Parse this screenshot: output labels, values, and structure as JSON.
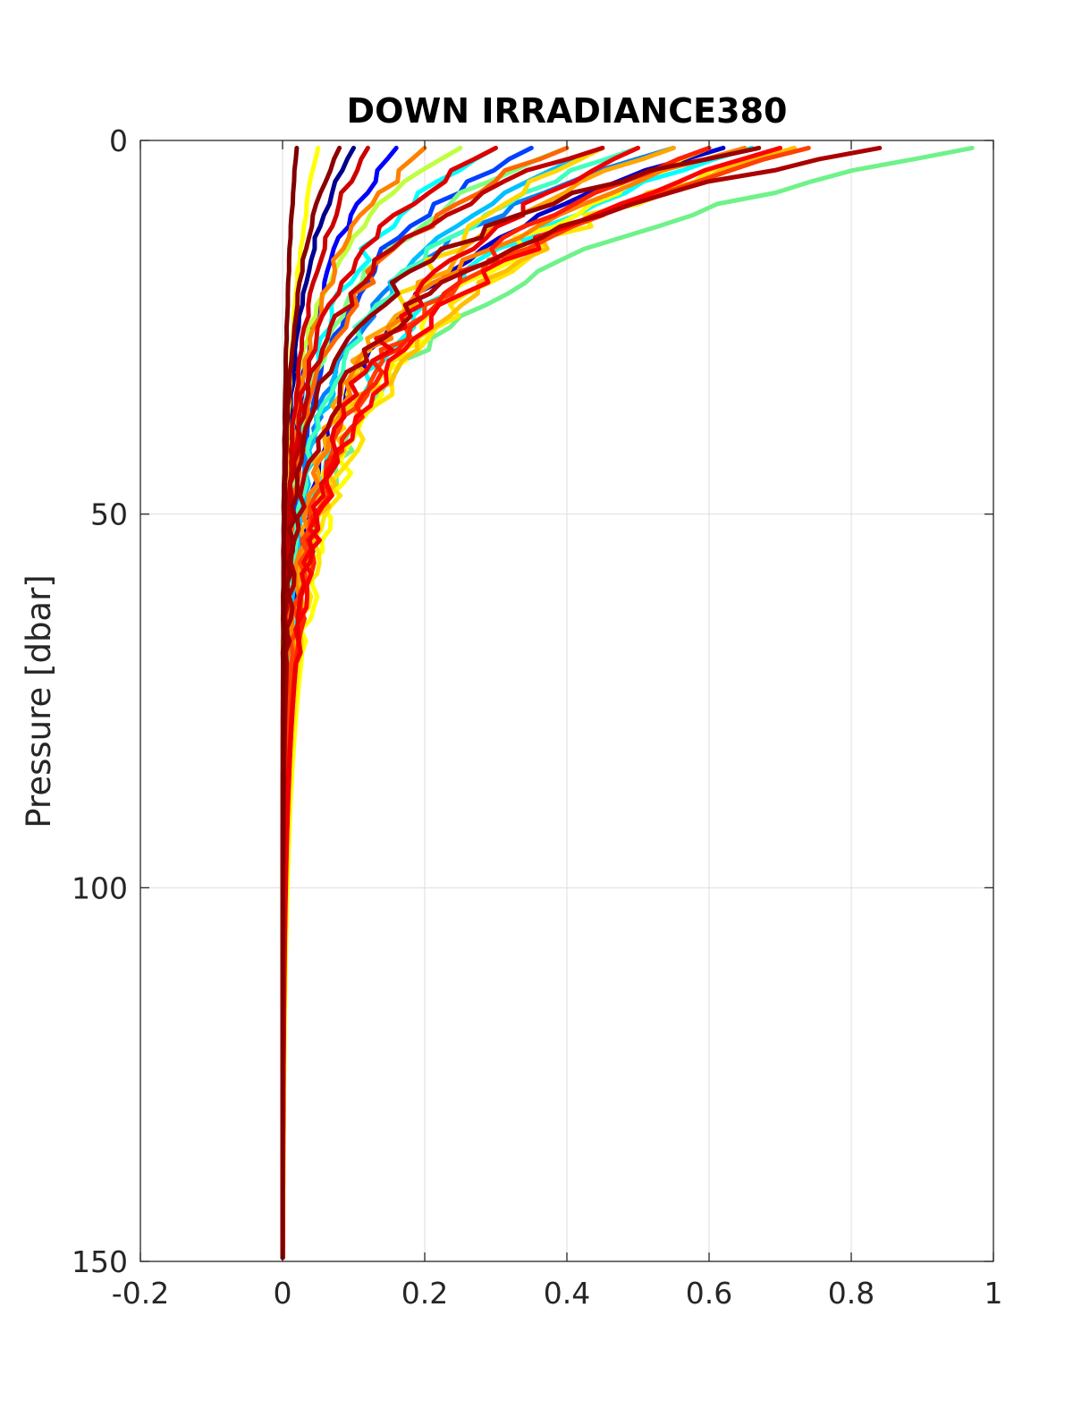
{
  "chart_data": {
    "type": "line",
    "title": "DOWN IRRADIANCE380",
    "xlabel": "",
    "ylabel": "Pressure [dbar]",
    "xlim": [
      -0.2,
      1
    ],
    "ylim": [
      0,
      150
    ],
    "y_reversed": true,
    "grid": true,
    "legend": "none",
    "xticks": [
      "-0.2",
      "0",
      "0.2",
      "0.4",
      "0.6",
      "0.8",
      "1"
    ],
    "yticks": [
      "0",
      "50",
      "100",
      "150"
    ],
    "colormap": "jet, dark blue to dark red",
    "series": [
      {
        "color": "#00008f",
        "surface": 0.1,
        "scale": 16,
        "jitter": 0.006,
        "bottom": 40
      },
      {
        "color": "#0000ff",
        "surface": 0.16,
        "scale": 18,
        "jitter": 0.008,
        "bottom": 60
      },
      {
        "color": "#0000cc",
        "surface": 0.62,
        "scale": 17,
        "jitter": 0.01,
        "bottom": 150
      },
      {
        "color": "#0040ff",
        "surface": 0.35,
        "scale": 16,
        "jitter": 0.012,
        "bottom": 120
      },
      {
        "color": "#0080ff",
        "surface": 0.55,
        "scale": 15,
        "jitter": 0.012,
        "bottom": 150
      },
      {
        "color": "#00bfff",
        "surface": 0.45,
        "scale": 17,
        "jitter": 0.014,
        "bottom": 150
      },
      {
        "color": "#00ffff",
        "surface": 0.66,
        "scale": 18,
        "jitter": 0.015,
        "bottom": 150
      },
      {
        "color": "#00ffff",
        "surface": 0.3,
        "scale": 15,
        "jitter": 0.014,
        "bottom": 140
      },
      {
        "color": "#40ffbf",
        "surface": 0.5,
        "scale": 16,
        "jitter": 0.013,
        "bottom": 150
      },
      {
        "color": "#6ff28a",
        "surface": 0.97,
        "scale": 17,
        "jitter": 0.014,
        "bottom": 150
      },
      {
        "color": "#80ff80",
        "surface": 0.4,
        "scale": 14,
        "jitter": 0.012,
        "bottom": 150
      },
      {
        "color": "#bfff40",
        "surface": 0.25,
        "scale": 13,
        "jitter": 0.01,
        "bottom": 140
      },
      {
        "color": "#ffff00",
        "surface": 0.05,
        "scale": 20,
        "jitter": 0.004,
        "bottom": 150
      },
      {
        "color": "#ffff00",
        "surface": 0.6,
        "scale": 22,
        "jitter": 0.022,
        "bottom": 150
      },
      {
        "color": "#ffe600",
        "surface": 0.7,
        "scale": 20,
        "jitter": 0.022,
        "bottom": 150
      },
      {
        "color": "#ffd700",
        "surface": 0.45,
        "scale": 21,
        "jitter": 0.02,
        "bottom": 150
      },
      {
        "color": "#ffbf00",
        "surface": 0.72,
        "scale": 19,
        "jitter": 0.02,
        "bottom": 150
      },
      {
        "color": "#ffa500",
        "surface": 0.55,
        "scale": 18,
        "jitter": 0.018,
        "bottom": 150
      },
      {
        "color": "#ff8000",
        "surface": 0.65,
        "scale": 17,
        "jitter": 0.017,
        "bottom": 150
      },
      {
        "color": "#ff8000",
        "surface": 0.2,
        "scale": 16,
        "jitter": 0.012,
        "bottom": 140
      },
      {
        "color": "#ff6600",
        "surface": 0.4,
        "scale": 15,
        "jitter": 0.015,
        "bottom": 150
      },
      {
        "color": "#ff4000",
        "surface": 0.74,
        "scale": 17,
        "jitter": 0.018,
        "bottom": 150
      },
      {
        "color": "#ff2000",
        "surface": 0.6,
        "scale": 20,
        "jitter": 0.02,
        "bottom": 150
      },
      {
        "color": "#ff0000",
        "surface": 0.7,
        "scale": 19,
        "jitter": 0.02,
        "bottom": 150
      },
      {
        "color": "#ee0000",
        "surface": 0.5,
        "scale": 21,
        "jitter": 0.018,
        "bottom": 150
      },
      {
        "color": "#dd0000",
        "surface": 0.3,
        "scale": 14,
        "jitter": 0.012,
        "bottom": 150
      },
      {
        "color": "#cc0000",
        "surface": 0.12,
        "scale": 18,
        "jitter": 0.006,
        "bottom": 150
      },
      {
        "color": "#bf0000",
        "surface": 0.45,
        "scale": 13,
        "jitter": 0.014,
        "bottom": 150
      },
      {
        "color": "#aa0000",
        "surface": 0.84,
        "scale": 14,
        "jitter": 0.016,
        "bottom": 150
      },
      {
        "color": "#990000",
        "surface": 0.67,
        "scale": 13,
        "jitter": 0.015,
        "bottom": 150
      },
      {
        "color": "#8b0000",
        "surface": 0.08,
        "scale": 15,
        "jitter": 0.004,
        "bottom": 150
      },
      {
        "color": "#800000",
        "surface": 0.02,
        "scale": 20,
        "jitter": 0.002,
        "bottom": 150
      }
    ]
  }
}
